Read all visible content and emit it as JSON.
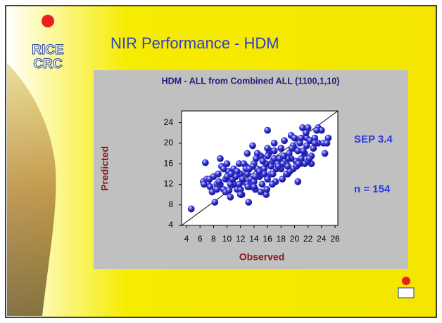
{
  "slide": {
    "title": "NIR Performance  - HDM",
    "logo": [
      "RICE",
      "CRC"
    ]
  },
  "chart_data": {
    "type": "scatter",
    "title": "HDM - ALL  from Combined ALL  (1100,1,10)",
    "x_label": "Observed",
    "y_label": "Predicted",
    "annotations": [
      "SEP  3.4",
      "n = 154"
    ],
    "color": "#2a2ad6",
    "xlim": [
      4,
      26
    ],
    "ylim": [
      4,
      26
    ],
    "xticks": [
      4,
      6,
      8,
      10,
      12,
      14,
      16,
      18,
      20,
      22,
      24,
      26
    ],
    "yticks": [
      4,
      8,
      12,
      16,
      20,
      24
    ],
    "x": [
      4.7,
      6.5,
      6.8,
      7,
      7.2,
      7.5,
      7.8,
      8,
      8.2,
      8.5,
      8.7,
      9,
      9.2,
      9.5,
      9.8,
      10,
      10.2,
      10.5,
      10.8,
      11,
      11.2,
      11.5,
      11.8,
      12,
      12.2,
      12.5,
      12.8,
      13,
      13.2,
      13.5,
      13.8,
      14,
      14.2,
      14.5,
      14.8,
      15,
      15.2,
      15.5,
      15.8,
      16,
      16.2,
      16.5,
      16.8,
      17,
      17.2,
      17.5,
      17.8,
      18,
      18.2,
      18.5,
      18.8,
      19,
      19.2,
      19.5,
      19.8,
      20,
      20.2,
      20.5,
      20.8,
      21,
      21.2,
      21.5,
      21.8,
      22,
      22.5,
      23,
      23.5,
      24,
      24.5,
      25,
      9,
      10,
      11,
      12,
      13,
      14,
      15,
      16,
      17,
      18,
      9.5,
      10.5,
      11.5,
      12.5,
      13.5,
      14.5,
      15.5,
      16.5,
      17.5,
      18.5,
      19.5,
      20.5,
      21.5,
      22.5,
      23.5,
      8.5,
      9.8,
      10.8,
      11.8,
      12.8,
      13.8,
      14.8,
      15.8,
      16.8,
      17.8,
      18.8,
      19.8,
      20.8,
      21.8,
      22.8,
      6.6,
      7.4,
      8.8,
      10.3,
      11.3,
      12.3,
      13.3,
      14.3,
      15.3,
      16.3,
      17.3,
      18.3,
      19.3,
      20.3,
      21.3,
      22.3,
      23.3,
      24.3,
      16,
      19,
      12,
      14,
      16,
      18,
      20,
      22,
      13,
      15,
      17,
      19,
      21,
      23,
      14.2,
      16.7,
      18.4,
      20.6,
      22.2,
      24.8,
      17.6,
      19.6,
      10.6,
      15.9,
      13.1,
      21.7
    ],
    "y": [
      7.2,
      12.5,
      16.2,
      13,
      12,
      11.5,
      10.5,
      13.5,
      8.5,
      12,
      14,
      17,
      15.5,
      11,
      13,
      16,
      14.5,
      9.5,
      12.5,
      15,
      13.5,
      11,
      16,
      14,
      10,
      12.5,
      15.5,
      18,
      8.5,
      13,
      19.5,
      16,
      11,
      15,
      13.5,
      17.5,
      12,
      15,
      10,
      22.5,
      18,
      14,
      16.5,
      20,
      12.5,
      17,
      15.5,
      19,
      13,
      20.5,
      16,
      14,
      18,
      21.5,
      15,
      19,
      16.5,
      12.5,
      20,
      17,
      23,
      16,
      19.5,
      23,
      17.5,
      21,
      23,
      22.5,
      18,
      21,
      12,
      13.5,
      12,
      11,
      14,
      12.5,
      14,
      13,
      17,
      15,
      15,
      12,
      14.5,
      16,
      11.5,
      18,
      14,
      15.5,
      16,
      17.5,
      17,
      18.5,
      18,
      16,
      20,
      11,
      10.5,
      13,
      12,
      15,
      15.5,
      14.5,
      16,
      14,
      17,
      14,
      19.5,
      16,
      21,
      19,
      12,
      13,
      12.5,
      10.8,
      13.5,
      13,
      15,
      17,
      16.5,
      18.5,
      15,
      16,
      14.5,
      15.5,
      18.5,
      20.5,
      22.5,
      20,
      19,
      15.5,
      10,
      11.5,
      17.5,
      19,
      21,
      16.5,
      12,
      10.5,
      18.5,
      17,
      21,
      20,
      13.5,
      12,
      17.5,
      16,
      17,
      20,
      15.5,
      19,
      14,
      11,
      11.5,
      22
    ]
  }
}
